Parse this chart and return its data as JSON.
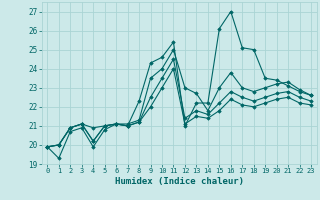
{
  "title": "",
  "xlabel": "Humidex (Indice chaleur)",
  "xlim": [
    -0.5,
    23.5
  ],
  "ylim": [
    19,
    27.5
  ],
  "yticks": [
    19,
    20,
    21,
    22,
    23,
    24,
    25,
    26,
    27
  ],
  "xticks": [
    0,
    1,
    2,
    3,
    4,
    5,
    6,
    7,
    8,
    9,
    10,
    11,
    12,
    13,
    14,
    15,
    16,
    17,
    18,
    19,
    20,
    21,
    22,
    23
  ],
  "bg_color": "#cce9e9",
  "grid_color": "#aad4d4",
  "line_color": "#006666",
  "series": [
    [
      19.9,
      19.3,
      20.7,
      20.9,
      19.9,
      20.8,
      21.1,
      21.0,
      22.3,
      24.3,
      24.6,
      25.4,
      21.0,
      22.2,
      22.2,
      26.1,
      27.0,
      25.1,
      25.0,
      23.5,
      23.4,
      23.1,
      22.8,
      22.6
    ],
    [
      19.9,
      20.0,
      20.9,
      21.1,
      20.9,
      21.0,
      21.1,
      21.1,
      21.3,
      23.5,
      24.0,
      25.0,
      23.0,
      22.7,
      21.8,
      23.0,
      23.8,
      23.0,
      22.8,
      23.0,
      23.2,
      23.3,
      22.9,
      22.6
    ],
    [
      19.9,
      20.0,
      20.9,
      21.1,
      20.2,
      21.0,
      21.1,
      21.0,
      21.2,
      22.5,
      23.5,
      24.5,
      21.4,
      21.8,
      21.6,
      22.2,
      22.8,
      22.5,
      22.3,
      22.5,
      22.7,
      22.8,
      22.5,
      22.3
    ],
    [
      19.9,
      20.0,
      20.9,
      21.1,
      20.2,
      21.0,
      21.1,
      21.0,
      21.2,
      22.0,
      23.0,
      24.0,
      21.1,
      21.5,
      21.4,
      21.8,
      22.4,
      22.1,
      22.0,
      22.2,
      22.4,
      22.5,
      22.2,
      22.1
    ]
  ]
}
